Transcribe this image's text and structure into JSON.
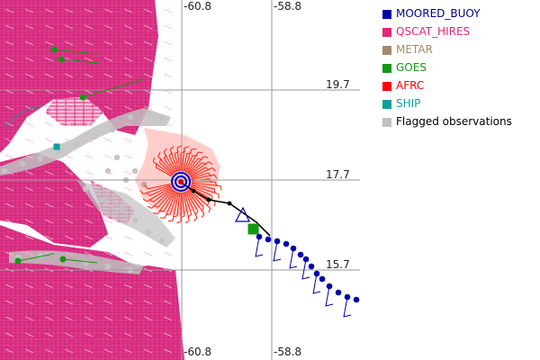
{
  "map": {
    "longitude_labels": [
      "-60.8",
      "-58.8"
    ],
    "latitude_labels": [
      "19.7",
      "17.7",
      "15.7"
    ],
    "storm_center": "circled storm center with black track heading southeast"
  },
  "legend": {
    "items": [
      {
        "label": "MOORED_BUOY",
        "color": "#0000aa",
        "text_color": "#000088"
      },
      {
        "label": "QSCAT_HIRES",
        "color": "#e0287a",
        "text_color": "#e0287a"
      },
      {
        "label": "METAR",
        "color": "#a08a6a",
        "text_color": "#a08a6a"
      },
      {
        "label": "GOES",
        "color": "#119911",
        "text_color": "#119911"
      },
      {
        "label": "AFRC",
        "color": "#ff0000",
        "text_color": "#ff0000"
      },
      {
        "label": "SHIP",
        "color": "#119c9c",
        "text_color": "#119c9c"
      },
      {
        "label": "Flagged observations",
        "color": "#c0c0c0",
        "text_color": "#000000"
      }
    ]
  }
}
